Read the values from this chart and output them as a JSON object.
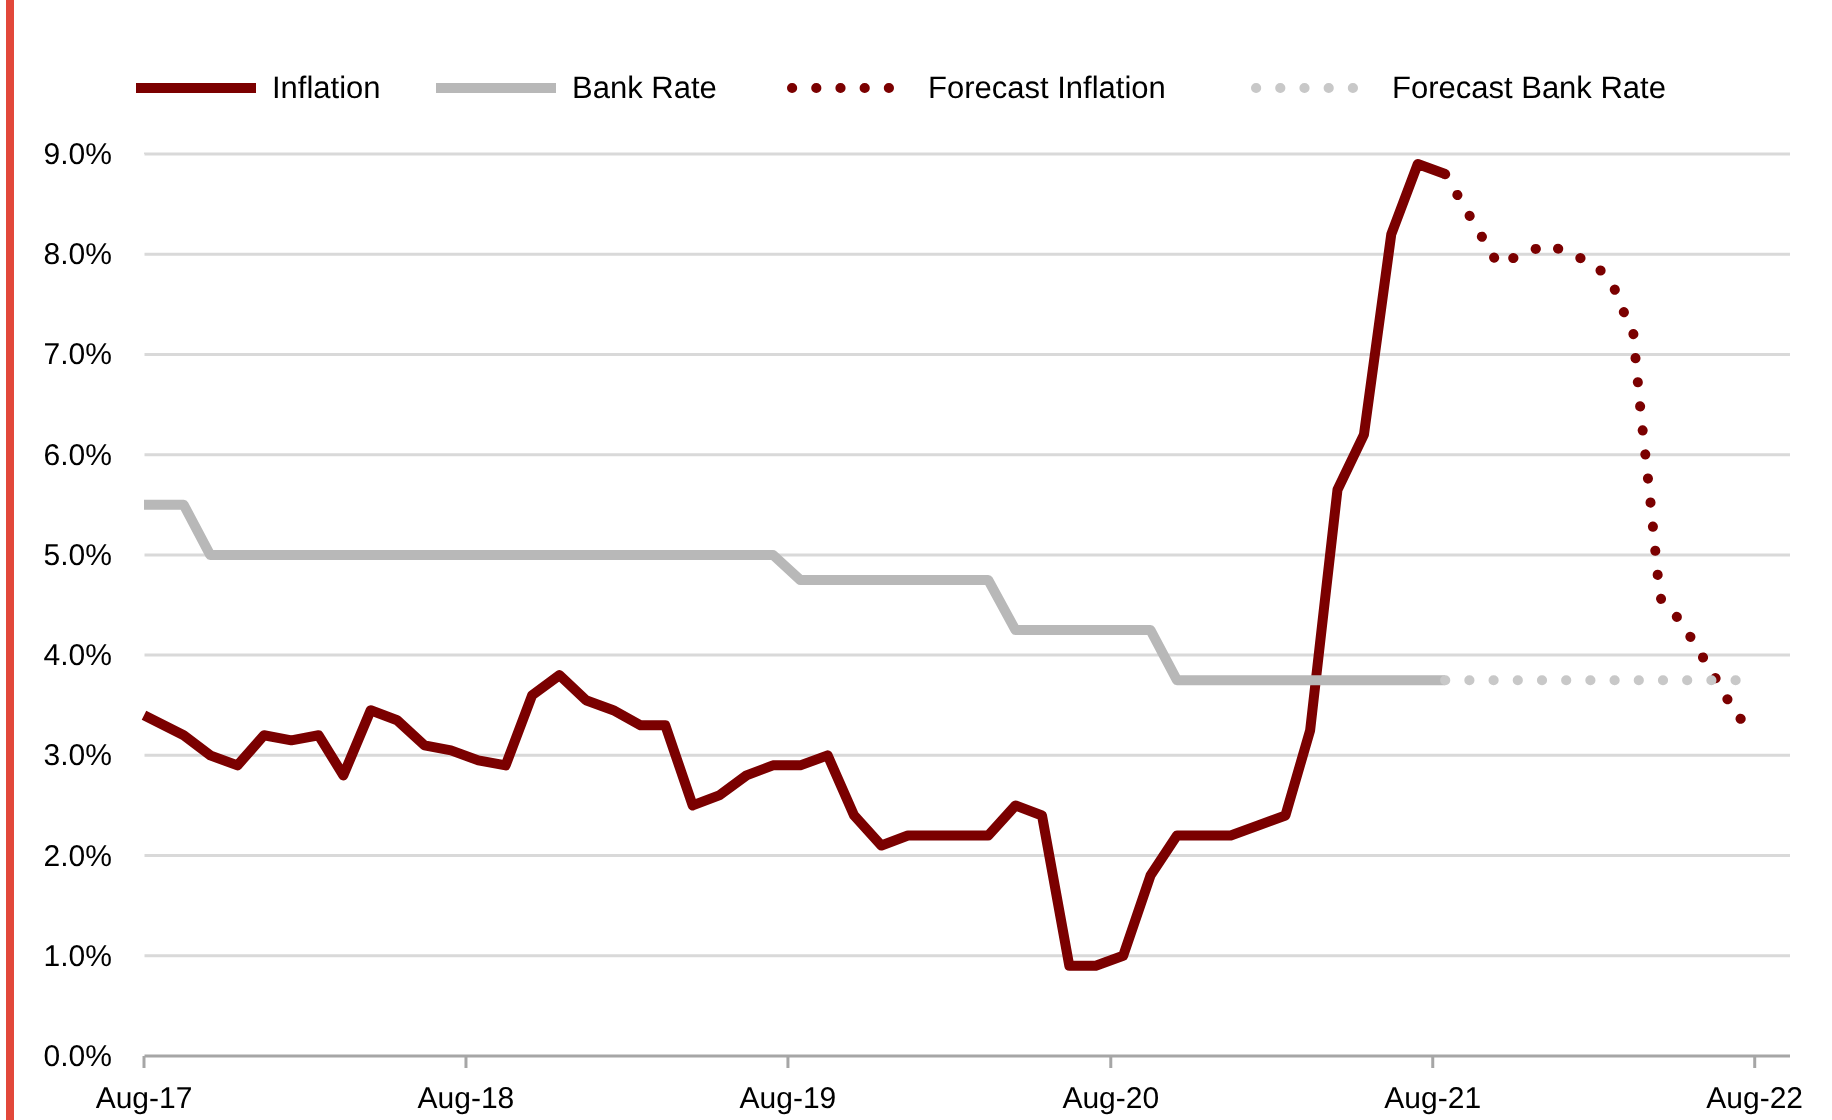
{
  "chart_data": {
    "type": "line",
    "legend": "top",
    "grid": "y",
    "xlim": [
      "2017-08-01",
      "2022-09-10"
    ],
    "xticks": [
      {
        "value": "2017-08-01",
        "label": "Aug-17"
      },
      {
        "value": "2018-08-01",
        "label": "Aug-18"
      },
      {
        "value": "2019-08-01",
        "label": "Aug-19"
      },
      {
        "value": "2020-08-01",
        "label": "Aug-20"
      },
      {
        "value": "2021-08-01",
        "label": "Aug-21"
      },
      {
        "value": "2022-08-01",
        "label": "Aug-22"
      }
    ],
    "ylim": [
      0,
      9
    ],
    "yticks": [
      {
        "value": 0,
        "label": "0.0%"
      },
      {
        "value": 1,
        "label": "1.0%"
      },
      {
        "value": 2,
        "label": "2.0%"
      },
      {
        "value": 3,
        "label": "3.0%"
      },
      {
        "value": 4,
        "label": "4.0%"
      },
      {
        "value": 5,
        "label": "5.0%"
      },
      {
        "value": 6,
        "label": "6.0%"
      },
      {
        "value": 7,
        "label": "7.0%"
      },
      {
        "value": 8,
        "label": "8.0%"
      },
      {
        "value": 9,
        "label": "9.0%"
      }
    ],
    "x": [
      "2017-08-01",
      "2017-09-15",
      "2017-10-15",
      "2017-11-15",
      "2017-12-15",
      "2018-01-15",
      "2018-02-15",
      "2018-03-15",
      "2018-04-15",
      "2018-05-15",
      "2018-06-15",
      "2018-07-15",
      "2018-08-15",
      "2018-09-15",
      "2018-10-15",
      "2018-11-15",
      "2018-12-15",
      "2019-01-15",
      "2019-02-15",
      "2019-03-15",
      "2019-04-15",
      "2019-05-15",
      "2019-06-15",
      "2019-07-15",
      "2019-08-15",
      "2019-09-15",
      "2019-10-15",
      "2019-11-15",
      "2019-12-15",
      "2020-01-15",
      "2020-02-15",
      "2020-03-15",
      "2020-04-15",
      "2020-05-15",
      "2020-06-15",
      "2020-07-15",
      "2020-08-15",
      "2020-09-15",
      "2020-10-15",
      "2020-11-15",
      "2020-12-15",
      "2021-01-15",
      "2021-02-15",
      "2021-03-15",
      "2021-04-15",
      "2021-05-15",
      "2021-06-15",
      "2021-07-15",
      "2021-08-15"
    ],
    "series": [
      {
        "name": "Inflation",
        "color": "#7b0000",
        "line_style": "solid",
        "values": [
          3.4,
          3.2,
          3.0,
          2.9,
          3.2,
          3.15,
          3.2,
          2.8,
          3.45,
          3.35,
          3.1,
          3.05,
          2.95,
          2.9,
          3.6,
          3.8,
          3.55,
          3.45,
          3.3,
          3.3,
          2.5,
          2.6,
          2.8,
          2.9,
          2.9,
          3.0,
          2.4,
          2.1,
          2.2,
          2.2,
          2.2,
          2.2,
          2.5,
          2.4,
          0.9,
          0.9,
          1.0,
          1.8,
          2.2,
          2.2,
          2.2,
          2.3,
          2.4,
          3.25,
          5.65,
          6.2,
          8.2,
          8.9,
          8.8
        ]
      },
      {
        "name": "Bank Rate",
        "color": "#b8b8b8",
        "line_style": "solid",
        "values": [
          5.5,
          5.5,
          5.0,
          5.0,
          5.0,
          5.0,
          5.0,
          5.0,
          5.0,
          5.0,
          5.0,
          5.0,
          5.0,
          5.0,
          5.0,
          5.0,
          5.0,
          5.0,
          5.0,
          5.0,
          5.0,
          5.0,
          5.0,
          5.0,
          4.75,
          4.75,
          4.75,
          4.75,
          4.75,
          4.75,
          4.75,
          4.75,
          4.25,
          4.25,
          4.25,
          4.25,
          4.25,
          4.25,
          3.75,
          3.75,
          3.75,
          3.75,
          3.75,
          3.75,
          3.75,
          3.75,
          3.75,
          3.75,
          3.75
        ]
      },
      {
        "name": "Forecast Inflation",
        "color": "#7b0000",
        "line_style": "dotted",
        "x": [
          "2021-08-15",
          "2021-10-14",
          "2021-12-09",
          "2022-02-01",
          "2022-02-21",
          "2022-03-04",
          "2022-03-16",
          "2022-03-19",
          "2022-03-25",
          "2022-04-04",
          "2022-04-13",
          "2022-04-17",
          "2022-05-08",
          "2022-05-26",
          "2022-06-12",
          "2022-06-26",
          "2022-07-10",
          "2022-07-27"
        ],
        "values": [
          8.8,
          7.9,
          8.1,
          7.9,
          7.7,
          7.45,
          7.25,
          6.95,
          6.4,
          5.6,
          4.8,
          4.55,
          4.35,
          4.1,
          3.85,
          3.65,
          3.4,
          3.3
        ]
      },
      {
        "name": "Forecast Bank Rate",
        "color": "#c8c8c8",
        "line_style": "dotted",
        "x": [
          "2021-08-15",
          "2022-07-27"
        ],
        "values": [
          3.75,
          3.75
        ]
      }
    ]
  }
}
